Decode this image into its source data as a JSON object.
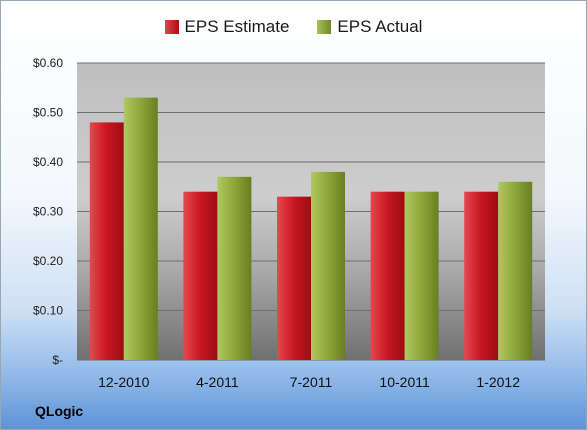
{
  "company": "QLogic",
  "chart_data": {
    "type": "bar",
    "categories": [
      "12-2010",
      "4-2011",
      "7-2011",
      "10-2011",
      "1-2012"
    ],
    "series": [
      {
        "name": "EPS Estimate",
        "values": [
          0.48,
          0.34,
          0.33,
          0.34,
          0.34
        ],
        "color": "#c0161e"
      },
      {
        "name": "EPS Actual",
        "values": [
          0.53,
          0.37,
          0.38,
          0.34,
          0.36
        ],
        "color": "#8fa83a"
      }
    ],
    "y_ticks": [
      {
        "value": 0.6,
        "label": "$0.60"
      },
      {
        "value": 0.5,
        "label": "$0.50"
      },
      {
        "value": 0.4,
        "label": "$0.40"
      },
      {
        "value": 0.3,
        "label": "$0.30"
      },
      {
        "value": 0.2,
        "label": "$0.20"
      },
      {
        "value": 0.1,
        "label": "$0.10"
      },
      {
        "value": 0.0,
        "label": "$-"
      }
    ],
    "ylim": [
      0,
      0.6
    ],
    "grid": true,
    "legend_position": "top-center"
  }
}
